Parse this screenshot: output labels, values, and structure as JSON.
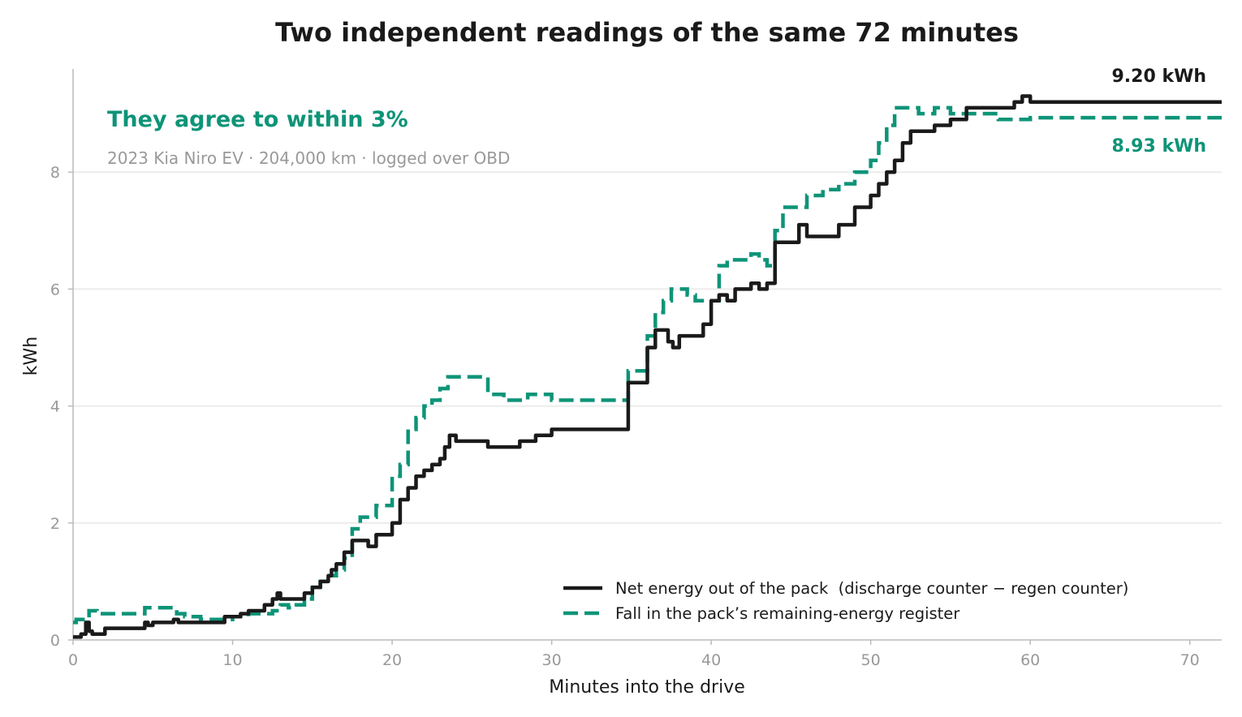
{
  "chart_data": {
    "type": "line",
    "title": "Two independent readings of the same 72 minutes",
    "headline": "They agree to within 3%",
    "subtitle": "2023 Kia Niro EV · 204,000 km · logged over OBD",
    "xlabel": "Minutes into the drive",
    "ylabel": "kWh",
    "xlim": [
      0,
      72
    ],
    "ylim": [
      0,
      9.8
    ],
    "xticks": [
      0,
      10,
      20,
      30,
      40,
      50,
      60,
      70
    ],
    "yticks": [
      0,
      2,
      4,
      6,
      8
    ],
    "grid": "horizontal",
    "legend_position": "bottom-right",
    "colors": {
      "net": "#1a1a1a",
      "register": "#0e9478",
      "headline": "#0e9478",
      "muted": "#999999"
    },
    "end_labels": {
      "net": "9.20 kWh",
      "register": "8.93 kWh"
    },
    "series": [
      {
        "name": "Net energy out of the pack  (discharge counter − regen counter)",
        "style": "solid",
        "x": [
          0,
          0.5,
          0.8,
          1.0,
          1.2,
          1.5,
          2.0,
          3.0,
          4.3,
          4.5,
          4.7,
          5.0,
          5.5,
          6.0,
          6.3,
          6.6,
          7.0,
          8.0,
          9.2,
          9.5,
          10.0,
          10.5,
          11.0,
          11.5,
          12.0,
          12.5,
          12.8,
          13.0,
          13.5,
          14.0,
          14.5,
          15.0,
          15.5,
          16.0,
          16.2,
          16.5,
          17.0,
          17.5,
          18.0,
          18.5,
          19.0,
          19.5,
          20.0,
          20.5,
          21.0,
          21.5,
          22.0,
          22.5,
          23.0,
          23.3,
          23.6,
          24.0,
          25.0,
          26.0,
          27.0,
          28.0,
          29.0,
          30.0,
          32.0,
          34.7,
          34.8,
          35.5,
          36.0,
          36.5,
          37.0,
          37.3,
          37.6,
          38.0,
          39.0,
          39.5,
          40.0,
          40.5,
          41.0,
          41.5,
          42.0,
          42.5,
          43.0,
          43.5,
          44.0,
          44.5,
          45.0,
          45.5,
          46.0,
          47.0,
          48.0,
          49.0,
          50.0,
          50.5,
          51.0,
          51.5,
          52.0,
          52.5,
          53.0,
          54.0,
          55.0,
          56.0,
          57.0,
          58.0,
          59.0,
          59.5,
          60.0,
          72.0
        ],
        "y": [
          0.05,
          0.1,
          0.3,
          0.15,
          0.1,
          0.1,
          0.2,
          0.2,
          0.2,
          0.3,
          0.25,
          0.3,
          0.3,
          0.3,
          0.35,
          0.3,
          0.3,
          0.3,
          0.3,
          0.4,
          0.4,
          0.45,
          0.5,
          0.5,
          0.6,
          0.7,
          0.8,
          0.7,
          0.7,
          0.7,
          0.8,
          0.9,
          1.0,
          1.1,
          1.2,
          1.3,
          1.5,
          1.7,
          1.7,
          1.6,
          1.8,
          1.8,
          2.0,
          2.4,
          2.6,
          2.8,
          2.9,
          3.0,
          3.1,
          3.3,
          3.5,
          3.4,
          3.4,
          3.3,
          3.3,
          3.4,
          3.5,
          3.6,
          3.6,
          3.6,
          4.4,
          4.4,
          5.0,
          5.3,
          5.3,
          5.1,
          5.0,
          5.2,
          5.2,
          5.4,
          5.8,
          5.9,
          5.8,
          6.0,
          6.0,
          6.1,
          6.0,
          6.1,
          6.8,
          6.8,
          6.8,
          7.1,
          6.9,
          6.9,
          7.1,
          7.4,
          7.6,
          7.8,
          8.0,
          8.2,
          8.5,
          8.7,
          8.7,
          8.8,
          8.9,
          9.1,
          9.1,
          9.1,
          9.2,
          9.3,
          9.2,
          9.2
        ]
      },
      {
        "name": "Fall in the pack’s remaining-energy register",
        "style": "dashed",
        "x": [
          0,
          0.2,
          0.5,
          1.0,
          1.5,
          2.0,
          3.0,
          4.0,
          4.5,
          5.0,
          6.0,
          6.5,
          7.0,
          8.0,
          9.0,
          10.0,
          11.0,
          11.5,
          12.0,
          12.5,
          13.0,
          13.5,
          14.0,
          14.5,
          15.0,
          15.5,
          16.0,
          16.5,
          17.0,
          17.5,
          18.0,
          18.5,
          19.0,
          19.5,
          20.0,
          20.5,
          21.0,
          21.5,
          22.0,
          22.5,
          23.0,
          23.5,
          24.0,
          25.0,
          26.0,
          27.0,
          28.0,
          28.5,
          29.0,
          30.0,
          32.0,
          34.7,
          34.8,
          35.5,
          36.0,
          36.5,
          37.0,
          37.5,
          38.0,
          38.5,
          39.0,
          39.5,
          40.0,
          40.5,
          41.0,
          42.0,
          42.5,
          43.0,
          43.5,
          44.0,
          44.5,
          45.0,
          46.0,
          47.0,
          48.0,
          49.0,
          50.0,
          50.5,
          51.0,
          51.5,
          52.0,
          53.0,
          54.0,
          55.0,
          56.0,
          57.0,
          58.0,
          59.0,
          60.0,
          72.0
        ],
        "y": [
          0.3,
          0.35,
          0.35,
          0.5,
          0.45,
          0.45,
          0.45,
          0.45,
          0.55,
          0.55,
          0.55,
          0.45,
          0.4,
          0.35,
          0.35,
          0.4,
          0.45,
          0.45,
          0.45,
          0.5,
          0.6,
          0.55,
          0.6,
          0.7,
          0.9,
          1.0,
          1.1,
          1.2,
          1.4,
          1.9,
          2.1,
          2.1,
          2.3,
          2.3,
          2.8,
          3.0,
          3.6,
          3.8,
          4.0,
          4.1,
          4.3,
          4.5,
          4.5,
          4.5,
          4.2,
          4.1,
          4.1,
          4.2,
          4.2,
          4.1,
          4.1,
          4.1,
          4.6,
          4.6,
          5.2,
          5.6,
          5.8,
          6.0,
          6.0,
          5.9,
          5.8,
          5.8,
          5.8,
          6.4,
          6.5,
          6.5,
          6.6,
          6.5,
          6.4,
          7.0,
          7.4,
          7.4,
          7.6,
          7.7,
          7.8,
          8.0,
          8.2,
          8.5,
          8.8,
          9.1,
          9.1,
          9.0,
          9.1,
          9.0,
          9.0,
          9.0,
          8.9,
          8.9,
          8.93,
          8.93
        ]
      }
    ]
  }
}
